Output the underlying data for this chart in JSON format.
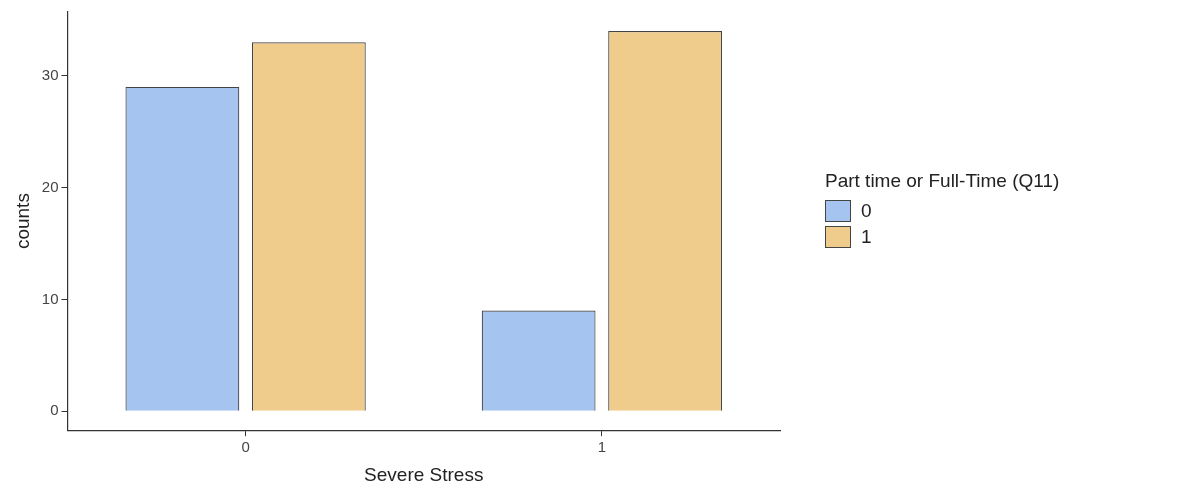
{
  "chart_data": {
    "type": "bar",
    "xlabel": "Severe Stress",
    "ylabel": "counts",
    "legend_title": "Part time or Full-Time (Q11)",
    "categories": [
      "0",
      "1"
    ],
    "series": [
      {
        "name": "0",
        "color": "#a6c4f0",
        "values": [
          29,
          9
        ]
      },
      {
        "name": "1",
        "color": "#f0cc8c",
        "values": [
          33,
          34
        ]
      }
    ],
    "ylim": [
      -1.7,
      35.7
    ],
    "yticks": [
      0,
      10,
      20,
      30
    ],
    "grid": false,
    "legend": "right"
  }
}
